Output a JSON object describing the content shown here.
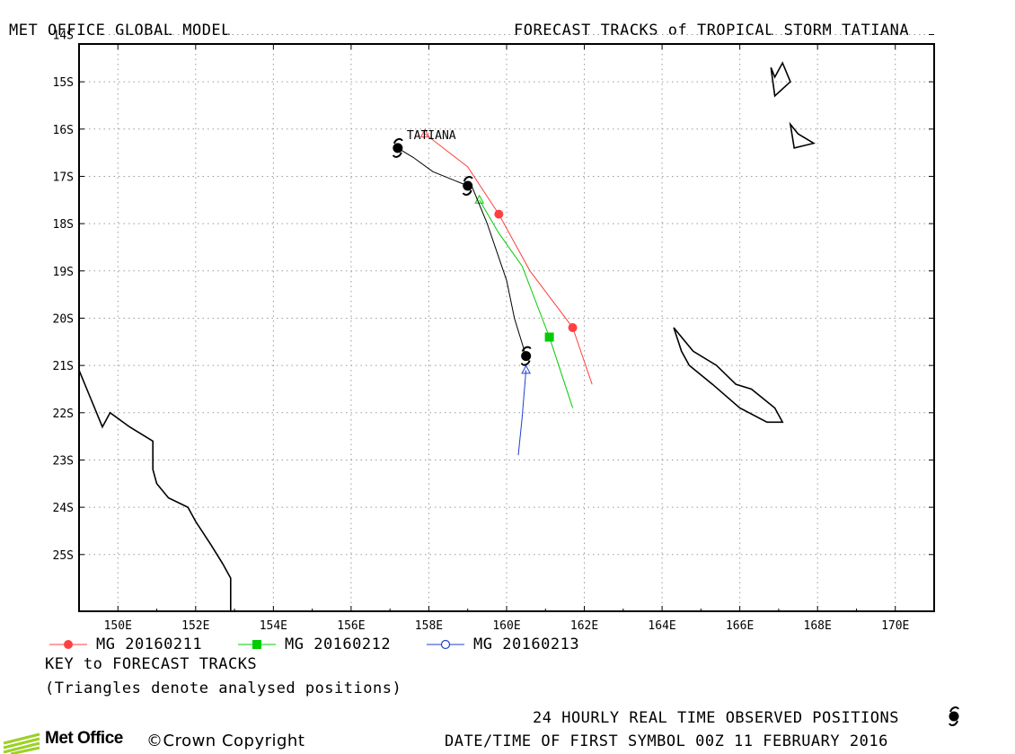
{
  "header": {
    "left_title": "MET OFFICE GLOBAL MODEL",
    "right_title": "FORECAST TRACKS of TROPICAL STORM TATIANA"
  },
  "chart_data": {
    "type": "line",
    "xlim": [
      149,
      171
    ],
    "ylim": [
      -26.7,
      -14.7
    ],
    "x_ticks": [
      150,
      152,
      154,
      156,
      158,
      160,
      162,
      164,
      166,
      168,
      170
    ],
    "x_tick_labels": [
      "150E",
      "152E",
      "154E",
      "156E",
      "158E",
      "160E",
      "162E",
      "164E",
      "166E",
      "168E",
      "170E"
    ],
    "y_ticks": [
      -14.5,
      -15.5,
      -16.5,
      -17.5,
      -18.5,
      -19.5,
      -20.5,
      -21.5,
      -22.5,
      -23.5,
      -24.5,
      -25.5
    ],
    "y_tick_labels": [
      "14S",
      "15S",
      "16S",
      "17S",
      "18S",
      "19S",
      "20S",
      "21S",
      "22S",
      "23S",
      "24S",
      "25S"
    ],
    "grid": true,
    "storm_label": "TATIANA",
    "colors": {
      "mg0211": "#ff4040",
      "mg0212": "#00cc00",
      "mg0213": "#2040d0",
      "observed": "#000000",
      "land": "#000000"
    },
    "series": [
      {
        "name": "MG 20160211",
        "marker": "circle-filled",
        "color": "#ff4040",
        "x": [
          157.9,
          159.0,
          159.8,
          160.6,
          161.7,
          162.2
        ],
        "y": [
          -16.6,
          -17.3,
          -18.3,
          -19.5,
          -20.7,
          -21.9
        ],
        "symbols_at": [
          [
            159.8,
            -18.3
          ],
          [
            161.7,
            -20.7
          ]
        ],
        "analysis_triangle": [
          157.9,
          -16.6
        ]
      },
      {
        "name": "MG 20160212",
        "marker": "square-filled",
        "color": "#00cc00",
        "x": [
          159.3,
          159.8,
          160.4,
          161.1,
          161.7
        ],
        "y": [
          -18.0,
          -18.7,
          -19.4,
          -20.9,
          -22.4
        ],
        "symbols_at": [
          [
            161.1,
            -20.9
          ]
        ],
        "analysis_triangle": [
          159.3,
          -18.0
        ]
      },
      {
        "name": "MG 20160213",
        "marker": "circle-open",
        "color": "#2040d0",
        "x": [
          160.5,
          160.4,
          160.3
        ],
        "y": [
          -21.6,
          -22.6,
          -23.4
        ],
        "symbols_at": [],
        "analysis_triangle": [
          160.5,
          -21.6
        ]
      },
      {
        "name": "Observed",
        "marker": "cyclone",
        "color": "#000000",
        "x": [
          157.2,
          157.6,
          158.1,
          159.0,
          159.1,
          159.5,
          160.0,
          160.2,
          160.5
        ],
        "y": [
          -16.9,
          -17.1,
          -17.4,
          -17.7,
          -17.7,
          -18.5,
          -19.7,
          -20.5,
          -21.3
        ],
        "symbols_at": [
          [
            157.2,
            -16.9
          ],
          [
            159.0,
            -17.7
          ],
          [
            160.5,
            -21.3
          ]
        ]
      }
    ],
    "land": [
      {
        "name": "australia",
        "points": [
          [
            149,
            -21.6
          ],
          [
            149.3,
            -22.2
          ],
          [
            149.6,
            -22.8
          ],
          [
            149.8,
            -22.5
          ],
          [
            150.3,
            -22.8
          ],
          [
            150.9,
            -23.1
          ],
          [
            150.9,
            -23.7
          ],
          [
            151.0,
            -24.0
          ],
          [
            151.3,
            -24.3
          ],
          [
            151.8,
            -24.5
          ],
          [
            152.0,
            -24.8
          ],
          [
            152.4,
            -25.3
          ],
          [
            152.7,
            -25.7
          ],
          [
            152.9,
            -26.0
          ],
          [
            152.9,
            -26.7
          ]
        ],
        "closed": false
      },
      {
        "name": "new-caledonia",
        "points": [
          [
            164.3,
            -20.7
          ],
          [
            164.8,
            -21.2
          ],
          [
            165.4,
            -21.5
          ],
          [
            165.9,
            -21.9
          ],
          [
            166.3,
            -22.0
          ],
          [
            166.9,
            -22.4
          ],
          [
            167.1,
            -22.7
          ],
          [
            166.7,
            -22.7
          ],
          [
            166.0,
            -22.4
          ],
          [
            165.3,
            -21.9
          ],
          [
            164.7,
            -21.5
          ],
          [
            164.5,
            -21.2
          ]
        ],
        "closed": true
      },
      {
        "name": "vanuatu-north",
        "points": [
          [
            166.8,
            -15.2
          ],
          [
            166.9,
            -15.8
          ],
          [
            167.3,
            -15.5
          ],
          [
            167.1,
            -15.1
          ],
          [
            166.9,
            -15.4
          ]
        ],
        "closed": true
      },
      {
        "name": "vanuatu-south",
        "points": [
          [
            167.3,
            -16.4
          ],
          [
            167.4,
            -16.9
          ],
          [
            167.9,
            -16.8
          ],
          [
            167.5,
            -16.6
          ]
        ],
        "closed": true
      }
    ]
  },
  "legend": {
    "items": [
      {
        "label": "MG 20160211"
      },
      {
        "label": "MG 20160212"
      },
      {
        "label": "MG 20160213"
      }
    ],
    "key_title": "KEY to FORECAST TRACKS",
    "key_note": "(Triangles denote analysed positions)"
  },
  "footer": {
    "logo_text": "Met Office",
    "copyright": "©Crown Copyright",
    "observed_note": "24 HOURLY REAL TIME OBSERVED POSITIONS",
    "datetime": "DATE/TIME OF FIRST SYMBOL 00Z 11 FEBRUARY 2016"
  }
}
